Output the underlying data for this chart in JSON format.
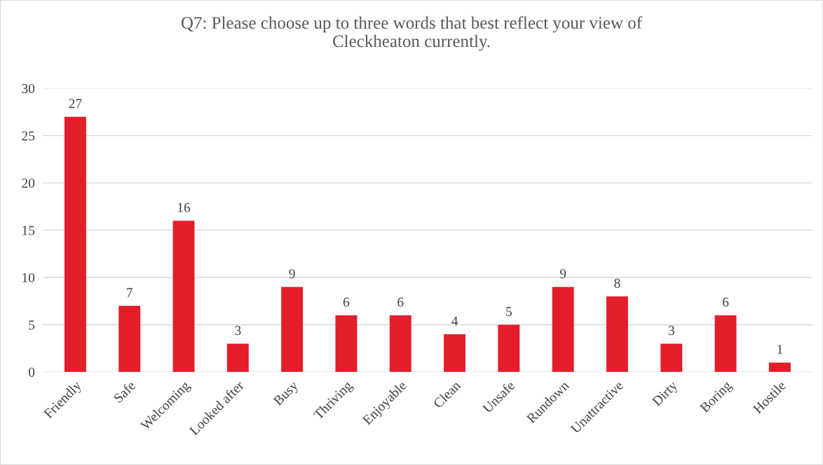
{
  "chart_data": {
    "type": "bar",
    "title": "Q7: Please choose up to three words that best reflect your view of\nCleckheaton currently.",
    "categories": [
      "Friendly",
      "Safe",
      "Welcoming",
      "Looked after",
      "Busy",
      "Thriving",
      "Enjoyable",
      "Clean",
      "Unsafe",
      "Rundown",
      "Unattractive",
      "Dirty",
      "Boring",
      "Hostile"
    ],
    "values": [
      27,
      7,
      16,
      3,
      9,
      6,
      6,
      4,
      5,
      9,
      8,
      3,
      6,
      1
    ],
    "color": "#e31e2a",
    "ylim": [
      0,
      30
    ],
    "yticks": [
      0,
      5,
      10,
      15,
      20,
      25,
      30
    ],
    "grid": "y",
    "data_labels": true
  }
}
